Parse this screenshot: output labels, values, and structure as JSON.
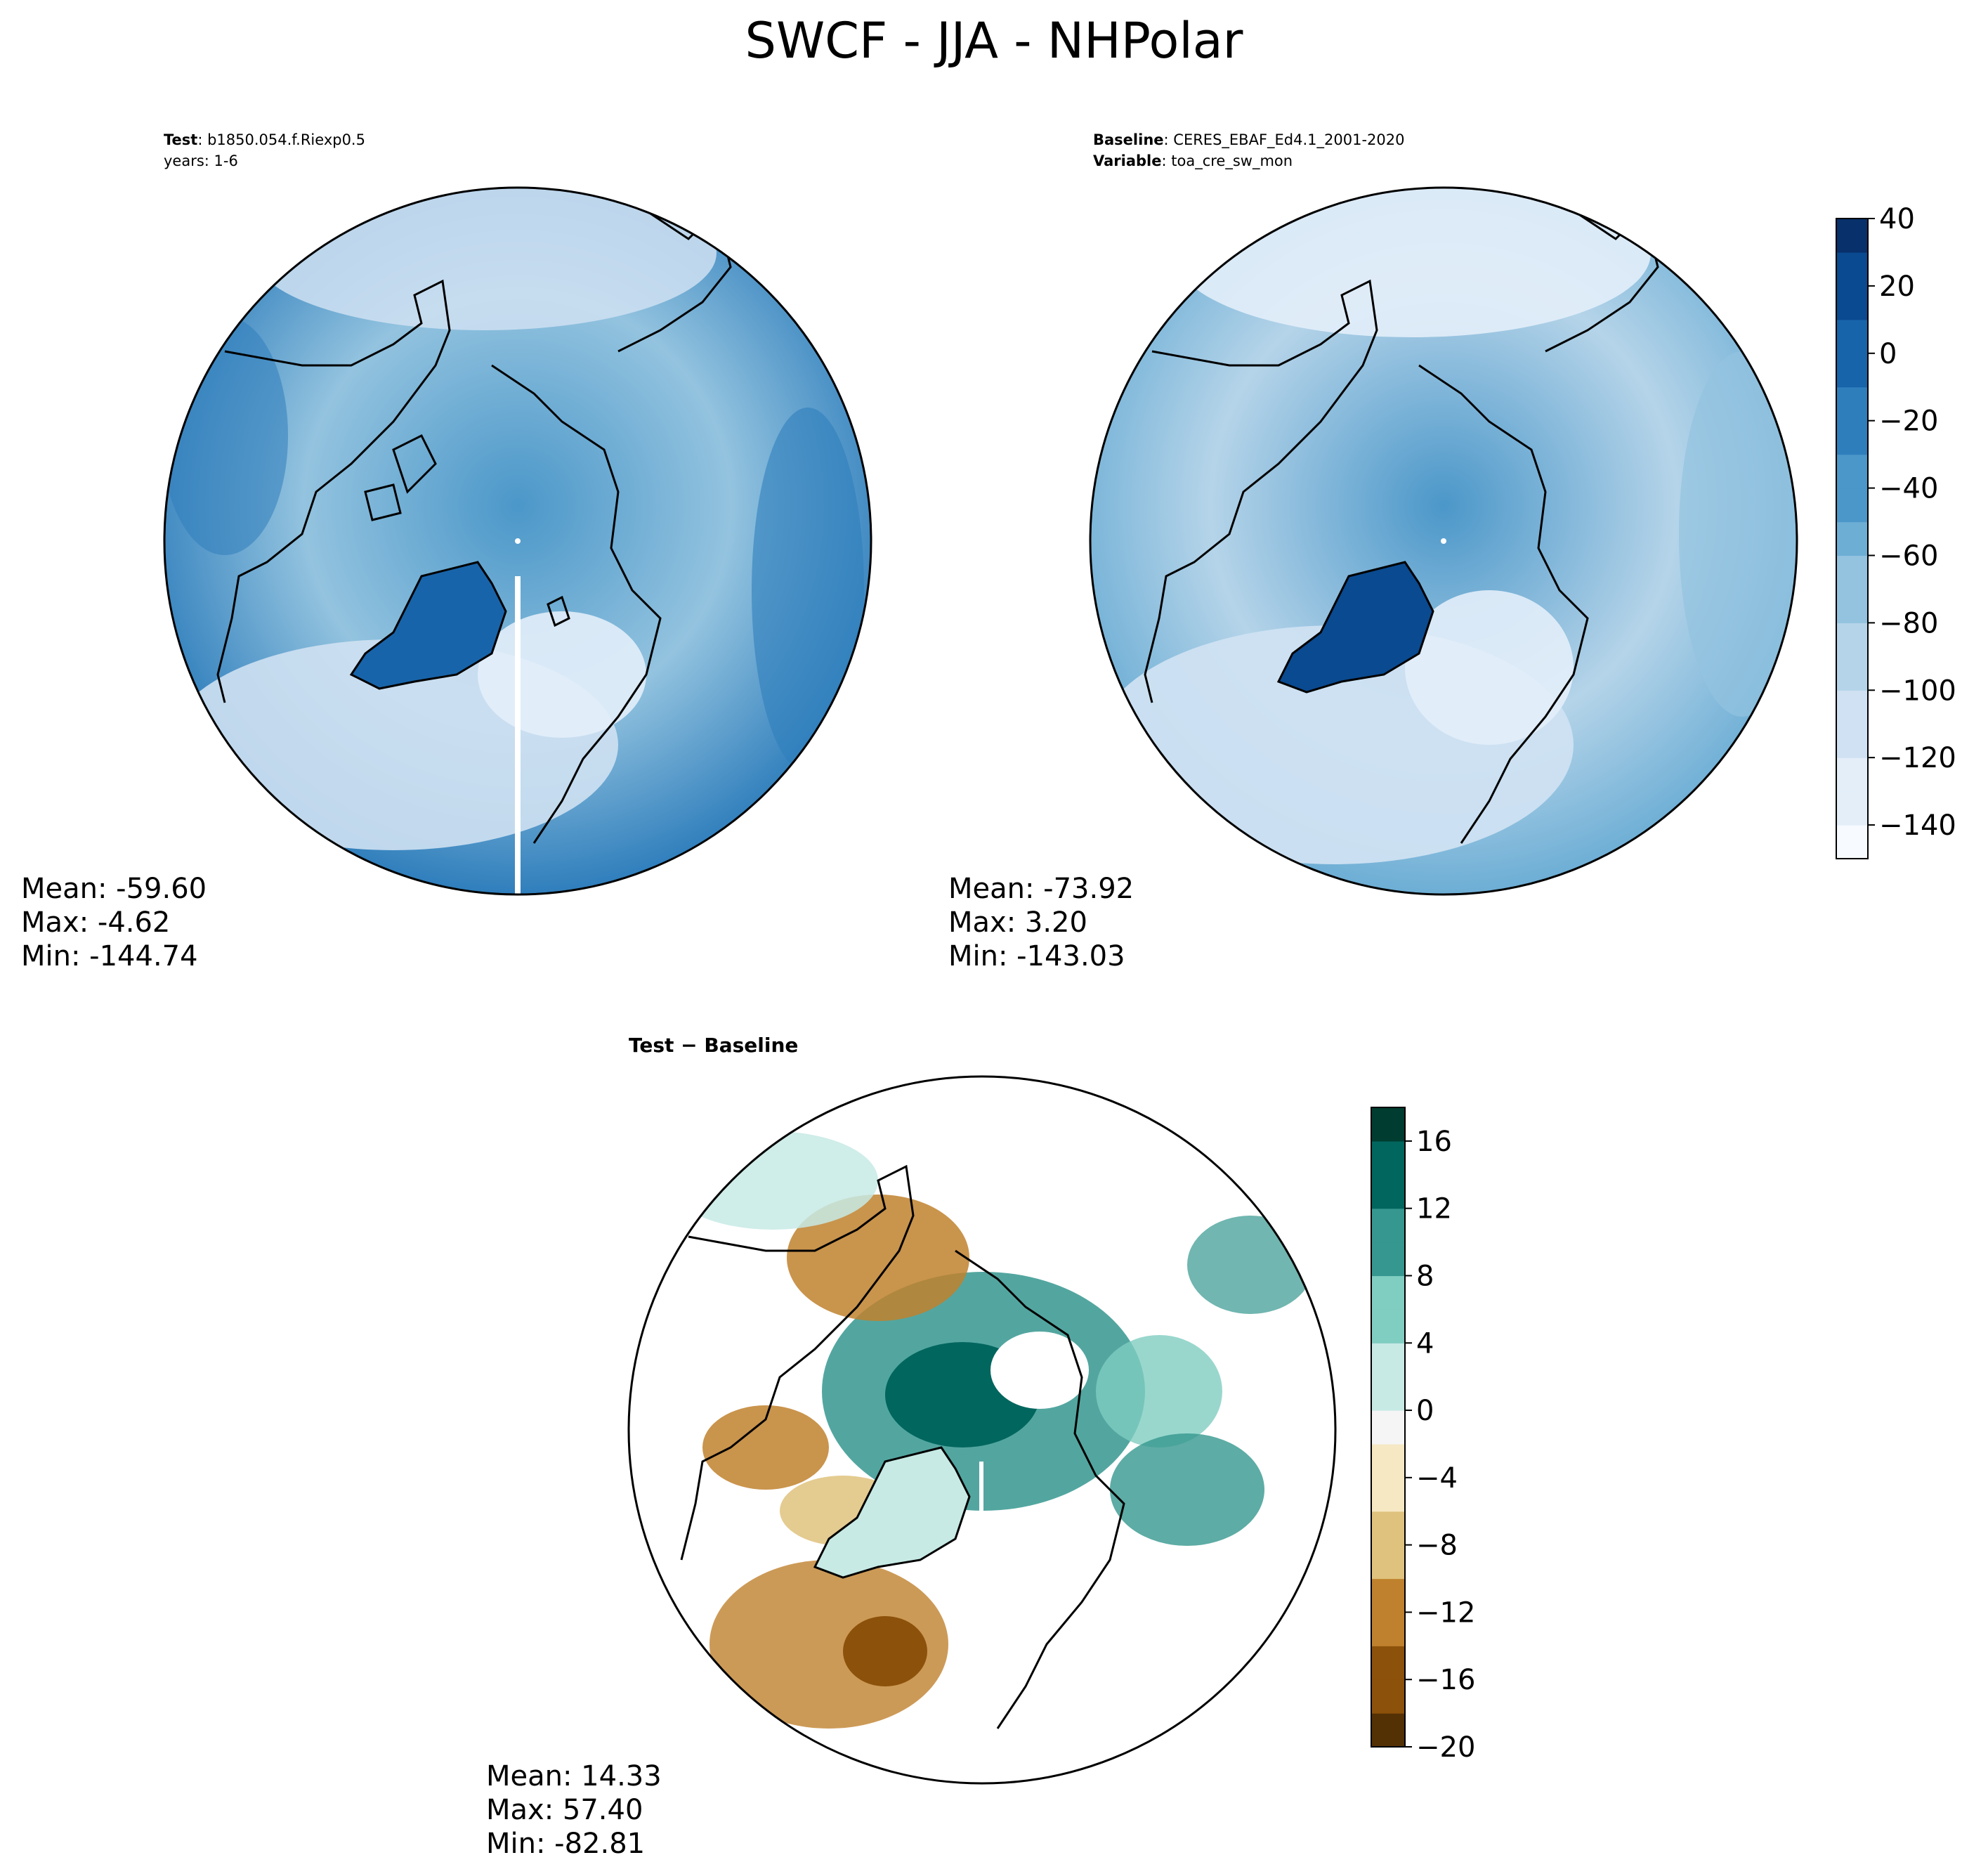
{
  "title": "SWCF - JJA - NHPolar",
  "colors": {
    "blues": [
      "#f7fbff",
      "#e3eef9",
      "#cfe1f2",
      "#b5d4e9",
      "#93c3df",
      "#6daed5",
      "#4b97c9",
      "#2f7ebc",
      "#1864aa",
      "#0a4a90",
      "#08306b"
    ],
    "diff": [
      "#543005",
      "#8c510a",
      "#bf812d",
      "#dfc27d",
      "#f6e8c3",
      "#f5f5f5",
      "#c7eae5",
      "#80cdc1",
      "#35978f",
      "#01665e",
      "#003c30"
    ]
  },
  "panels": {
    "test": {
      "label_key_1": "Test",
      "label_val_1": "b1850.054.f.Riexp0.5",
      "label_line_2": "years: 1-6",
      "mean": "Mean: -59.60",
      "max": "Max: -4.62",
      "min": "Min: -144.74"
    },
    "baseline": {
      "label_key_1": "Baseline",
      "label_val_1": "CERES_EBAF_Ed4.1_2001-2020",
      "label_key_2": "Variable",
      "label_val_2": "toa_cre_sw_mon",
      "mean": "Mean: -73.92",
      "max": "Max:  3.20",
      "min": "Min: -143.03"
    },
    "diff": {
      "label": "Test − Baseline",
      "mean": "Mean: 14.33",
      "max": "Max: 57.40",
      "min": "Min: -82.81"
    }
  },
  "colorbars": {
    "main": {
      "ticks": [
        "40",
        "20",
        "0",
        "−20",
        "−40",
        "−60",
        "−80",
        "−100",
        "−120",
        "−140"
      ],
      "range": [
        -150,
        40
      ]
    },
    "diff": {
      "ticks": [
        "16",
        "12",
        "8",
        "4",
        "0",
        "−4",
        "−8",
        "−12",
        "−16",
        "−20"
      ],
      "range": [
        -20,
        18
      ]
    }
  }
}
